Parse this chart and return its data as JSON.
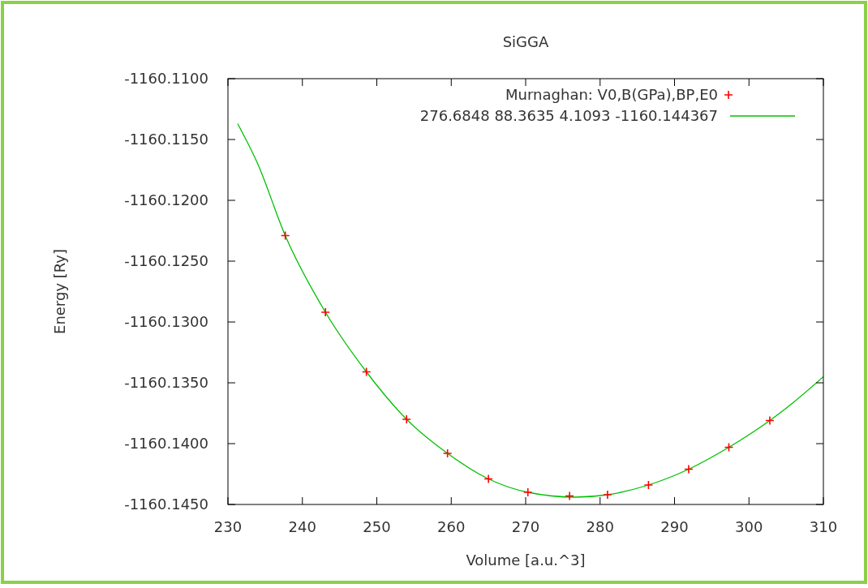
{
  "chart_data": {
    "type": "scatter",
    "title": "SiGGA",
    "xlabel": "Volume [a.u.^3]",
    "ylabel": "Energy [Ry]",
    "xlim": [
      230,
      310
    ],
    "xticks": [
      230,
      240,
      250,
      260,
      270,
      280,
      290,
      300,
      310
    ],
    "ylim": [
      -1160.145,
      -1160.11
    ],
    "yticks": [
      {
        "value": -1160.145,
        "label": "-1160.1450"
      },
      {
        "value": -1160.14,
        "label": "-1160.1400"
      },
      {
        "value": -1160.135,
        "label": "-1160.1350"
      },
      {
        "value": -1160.13,
        "label": "-1160.1300"
      },
      {
        "value": -1160.125,
        "label": "-1160.1250"
      },
      {
        "value": -1160.12,
        "label": "-1160.1200"
      },
      {
        "value": -1160.115,
        "label": "-1160.1150"
      },
      {
        "value": -1160.11,
        "label": "-1160.1100"
      }
    ],
    "legend": "top right",
    "grid": false,
    "series": [
      {
        "name": "Murnaghan: V0,B(GPa),BP,E0",
        "color": "#ff0000",
        "marker": "cross",
        "x": [
          237.7,
          243.1,
          248.6,
          254,
          259.5,
          265,
          270.3,
          275.9,
          281,
          286.5,
          291.9,
          297.3,
          302.8
        ],
        "values": [
          -1160.1229,
          -1160.1292,
          -1160.1341,
          -1160.138,
          -1160.1408,
          -1160.1429,
          -1160.144,
          -1160.1443,
          -1160.1442,
          -1160.1434,
          -1160.1421,
          -1160.1403,
          -1160.1381
        ]
      },
      {
        "name": "276.6848 88.3635 4.1093 -1160.144367",
        "type": "line",
        "color": "#00c000",
        "line_style": "solid",
        "marker": "none",
        "x": [
          231.3,
          234,
          237.7,
          243.1,
          248.6,
          254,
          259.5,
          265,
          270.3,
          276.7,
          281,
          286.5,
          291.9,
          297.3,
          302.8,
          306,
          310
        ],
        "values": [
          -1160.1137,
          -1160.117,
          -1160.1229,
          -1160.1292,
          -1160.1341,
          -1160.138,
          -1160.1408,
          -1160.1429,
          -1160.144,
          -1160.1444,
          -1160.1442,
          -1160.1434,
          -1160.1421,
          -1160.1403,
          -1160.1381,
          -1160.1366,
          -1160.1345
        ]
      }
    ]
  }
}
